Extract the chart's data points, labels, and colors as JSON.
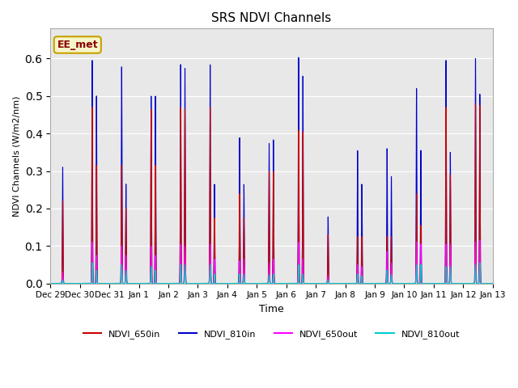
{
  "title": "SRS NDVI Channels",
  "xlabel": "Time",
  "ylabel": "NDVI Channels (W/m2/nm)",
  "annotation": "EE_met",
  "ylim": [
    0.0,
    0.68
  ],
  "background_color": "#e8e8e8",
  "plot_bg": "#ebebeb",
  "legend_colors": [
    "#cc0000",
    "#0000cc",
    "#ff00ff",
    "#00cccc"
  ],
  "legend_labels": [
    "NDVI_650in",
    "NDVI_810in",
    "NDVI_650out",
    "NDVI_810out"
  ],
  "xtick_labels": [
    "Dec 29",
    "Dec 30",
    "Dec 31",
    "Jan 1",
    "Jan 2",
    "Jan 3",
    "Jan 4",
    "Jan 5",
    "Jan 6",
    "Jan 7",
    "Jan 8",
    "Jan 9",
    "Jan 10",
    "Jan 11",
    "Jan 12",
    "Jan 13"
  ],
  "peaks_810in": [
    0.31,
    0.595,
    0.578,
    0.5,
    0.585,
    0.585,
    0.39,
    0.375,
    0.605,
    0.178,
    0.355,
    0.36,
    0.52,
    0.595,
    0.6,
    0.0
  ],
  "peaks_650in": [
    0.22,
    0.47,
    0.315,
    0.465,
    0.47,
    0.47,
    0.24,
    0.3,
    0.41,
    0.13,
    0.125,
    0.125,
    0.24,
    0.47,
    0.48,
    0.0
  ],
  "peaks_650out": [
    0.03,
    0.11,
    0.1,
    0.1,
    0.105,
    0.105,
    0.06,
    0.055,
    0.11,
    0.02,
    0.05,
    0.085,
    0.11,
    0.105,
    0.11,
    0.0
  ],
  "peaks_810out": [
    0.01,
    0.055,
    0.05,
    0.045,
    0.05,
    0.05,
    0.025,
    0.025,
    0.05,
    0.01,
    0.025,
    0.035,
    0.05,
    0.045,
    0.05,
    0.0
  ],
  "peaks2_810in": [
    0.0,
    0.5,
    0.265,
    0.5,
    0.575,
    0.265,
    0.265,
    0.385,
    0.555,
    0.0,
    0.265,
    0.285,
    0.355,
    0.35,
    0.505,
    0.0
  ],
  "peaks2_650in": [
    0.0,
    0.315,
    0.2,
    0.315,
    0.465,
    0.175,
    0.175,
    0.3,
    0.405,
    0.0,
    0.125,
    0.125,
    0.155,
    0.29,
    0.475,
    0.0
  ],
  "peaks2_650out": [
    0.0,
    0.075,
    0.075,
    0.075,
    0.1,
    0.065,
    0.065,
    0.065,
    0.065,
    0.0,
    0.045,
    0.055,
    0.105,
    0.105,
    0.115,
    0.0
  ],
  "peaks2_810out": [
    0.0,
    0.035,
    0.035,
    0.035,
    0.05,
    0.025,
    0.025,
    0.025,
    0.025,
    0.0,
    0.02,
    0.025,
    0.05,
    0.045,
    0.055,
    0.0
  ]
}
